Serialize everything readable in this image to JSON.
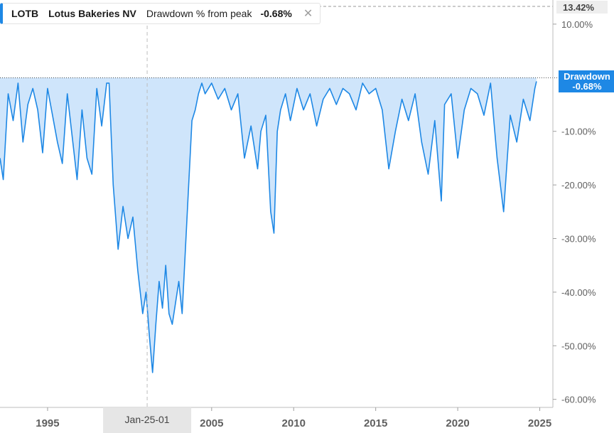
{
  "legend": {
    "ticker": "LOTB",
    "company": "Lotus Bakeries NV",
    "metric": "Drawdown % from peak",
    "value": "-0.68%",
    "close_icon": "close-icon"
  },
  "badges": {
    "top_value": "13.42%",
    "series_label": "Drawdown",
    "series_value": "-0.68%",
    "crosshair_date": "Jan-25-01"
  },
  "colors": {
    "line": "#1e88e5",
    "fill": "#cfe5fb",
    "badge_bg": "#1e88e5",
    "axis_text": "#5f5f5f",
    "crosshair_bg": "#e6e6e6"
  },
  "chart_data": {
    "type": "area",
    "title": "Drawdown % from peak",
    "ylabel": "",
    "xlabel": "",
    "ylim": [
      -61.5,
      14.5
    ],
    "xlim": [
      1992.1,
      2025.8
    ],
    "y_ticks": [
      "10.00%",
      "-10.00%",
      "-20.00%",
      "-30.00%",
      "-40.00%",
      "-50.00%",
      "-60.00%"
    ],
    "y_tick_values": [
      10,
      -10,
      -20,
      -30,
      -40,
      -50,
      -60
    ],
    "x_ticks": [
      "1995",
      "2005",
      "2010",
      "2015",
      "2020",
      "2025"
    ],
    "x_tick_values": [
      1995,
      2005,
      2010,
      2015,
      2020,
      2025
    ],
    "crosshair_x": 2001.07,
    "series": [
      {
        "name": "Drawdown",
        "x": [
          1992.1,
          1992.3,
          1992.6,
          1992.9,
          1993.2,
          1993.5,
          1993.8,
          1994.1,
          1994.4,
          1994.7,
          1995.0,
          1995.3,
          1995.6,
          1995.9,
          1996.2,
          1996.5,
          1996.8,
          1997.1,
          1997.4,
          1997.7,
          1998.0,
          1998.3,
          1998.6,
          1998.75,
          1999.0,
          1999.3,
          1999.6,
          1999.9,
          2000.2,
          2000.5,
          2000.8,
          2001.0,
          2001.2,
          2001.4,
          2001.6,
          2001.8,
          2002.0,
          2002.2,
          2002.4,
          2002.6,
          2002.8,
          2003.0,
          2003.2,
          2003.4,
          2003.6,
          2003.8,
          2004.0,
          2004.2,
          2004.4,
          2004.6,
          2004.8,
          2005.0,
          2005.4,
          2005.8,
          2006.2,
          2006.6,
          2007.0,
          2007.4,
          2007.8,
          2008.0,
          2008.3,
          2008.6,
          2008.8,
          2009.0,
          2009.2,
          2009.5,
          2009.8,
          2010.2,
          2010.6,
          2011.0,
          2011.4,
          2011.8,
          2012.2,
          2012.6,
          2013.0,
          2013.4,
          2013.8,
          2014.2,
          2014.6,
          2015.0,
          2015.4,
          2015.8,
          2016.2,
          2016.6,
          2017.0,
          2017.4,
          2017.8,
          2018.2,
          2018.6,
          2019.0,
          2019.2,
          2019.6,
          2020.0,
          2020.4,
          2020.8,
          2021.2,
          2021.6,
          2022.0,
          2022.4,
          2022.8,
          2023.2,
          2023.6,
          2024.0,
          2024.4,
          2024.7,
          2024.8
        ],
        "y": [
          -15,
          -19,
          -3,
          -8,
          -1,
          -12,
          -5,
          -2,
          -6,
          -14,
          -2,
          -7,
          -12,
          -16,
          -3,
          -11,
          -19,
          -6,
          -15,
          -18,
          -2,
          -9,
          -1,
          -1,
          -20,
          -32,
          -24,
          -30,
          -26,
          -36,
          -44,
          -40,
          -48,
          -55,
          -46,
          -38,
          -43,
          -35,
          -44,
          -46,
          -42,
          -38,
          -44,
          -32,
          -20,
          -8,
          -6,
          -3,
          -1,
          -3,
          -2,
          -1,
          -4,
          -2,
          -6,
          -3,
          -15,
          -9,
          -17,
          -10,
          -7,
          -25,
          -29,
          -10,
          -6,
          -3,
          -8,
          -2,
          -6,
          -3,
          -9,
          -4,
          -2,
          -5,
          -2,
          -3,
          -6,
          -1,
          -3,
          -2,
          -6,
          -17,
          -10,
          -4,
          -8,
          -3,
          -12,
          -18,
          -8,
          -23,
          -5,
          -3,
          -15,
          -6,
          -2,
          -3,
          -7,
          -1,
          -15,
          -25,
          -7,
          -12,
          -4,
          -8,
          -2,
          -0.68
        ]
      }
    ]
  }
}
